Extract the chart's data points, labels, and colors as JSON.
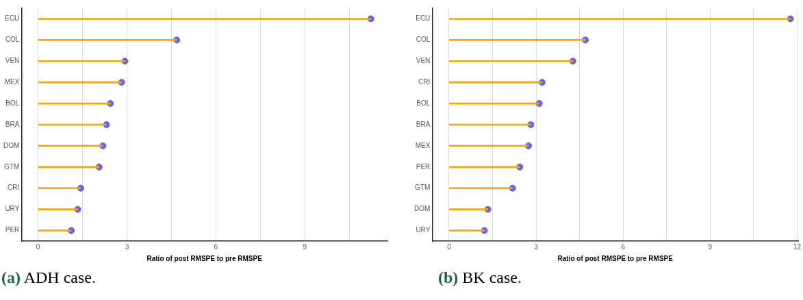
{
  "chart_data": [
    {
      "type": "bar",
      "orientation": "horizontal",
      "categories": [
        "ECU",
        "COL",
        "VEN",
        "MEX",
        "BOL",
        "BRA",
        "DOM",
        "GTM",
        "CRI",
        "URY",
        "PER"
      ],
      "series": [
        {
          "color": "#ffa500",
          "values": [
            11.23,
            4.68,
            2.93,
            2.82,
            2.44,
            2.31,
            2.19,
            2.06,
            1.44,
            1.34,
            1.12
          ]
        },
        {
          "type": "scatter",
          "color": "#6464f0",
          "x": [
            "ECU",
            "COL",
            "VEN",
            "MEX",
            "BOL",
            "BRA",
            "DOM",
            "GTM",
            "CRI",
            "URY",
            "PER"
          ],
          "values": [
            11.23,
            4.68,
            2.93,
            2.82,
            2.44,
            2.31,
            2.19,
            2.06,
            1.44,
            1.34,
            1.12
          ]
        }
      ],
      "xlabel": "Ratio of post RMSPE to pre RMSPE",
      "xlim": [
        -0.56,
        11.79
      ],
      "xticks": [
        0,
        {
          "value": 1.5,
          "label": null
        },
        3,
        {
          "value": 4.5,
          "label": null
        },
        6,
        {
          "value": 7.5,
          "label": null
        },
        9,
        {
          "value": 10.5,
          "label": null
        }
      ],
      "grid": "x",
      "marker": "circle",
      "annotations": [
        "(a) ADH case."
      ]
    },
    {
      "type": "bar",
      "orientation": "horizontal",
      "categories": [
        "ECU",
        "COL",
        "VEN",
        "CRI",
        "BOL",
        "BRA",
        "MEX",
        "PER",
        "GTM",
        "DOM",
        "URY"
      ],
      "series": [
        {
          "color": "#ffa500",
          "values": [
            11.77,
            4.7,
            4.27,
            3.21,
            3.11,
            2.82,
            2.74,
            2.44,
            2.19,
            1.34,
            1.22
          ]
        },
        {
          "type": "scatter",
          "color": "#6464f0",
          "x": [
            "ECU",
            "COL",
            "VEN",
            "CRI",
            "BOL",
            "BRA",
            "MEX",
            "PER",
            "GTM",
            "DOM",
            "URY"
          ],
          "values": [
            11.77,
            4.7,
            4.27,
            3.21,
            3.11,
            2.82,
            2.74,
            2.44,
            2.19,
            1.34,
            1.22
          ]
        }
      ],
      "xlabel": "Ratio of post RMSPE to pre RMSPE",
      "xlim": [
        -0.58,
        12.04
      ],
      "xticks": [
        0,
        {
          "value": 1.5,
          "label": null
        },
        3,
        {
          "value": 4.5,
          "label": null
        },
        6,
        {
          "value": 7.5,
          "label": null
        },
        9,
        {
          "value": 10.5,
          "label": null
        },
        12
      ],
      "grid": "x",
      "marker": "circle",
      "annotations": [
        "(b) BK case."
      ]
    }
  ]
}
